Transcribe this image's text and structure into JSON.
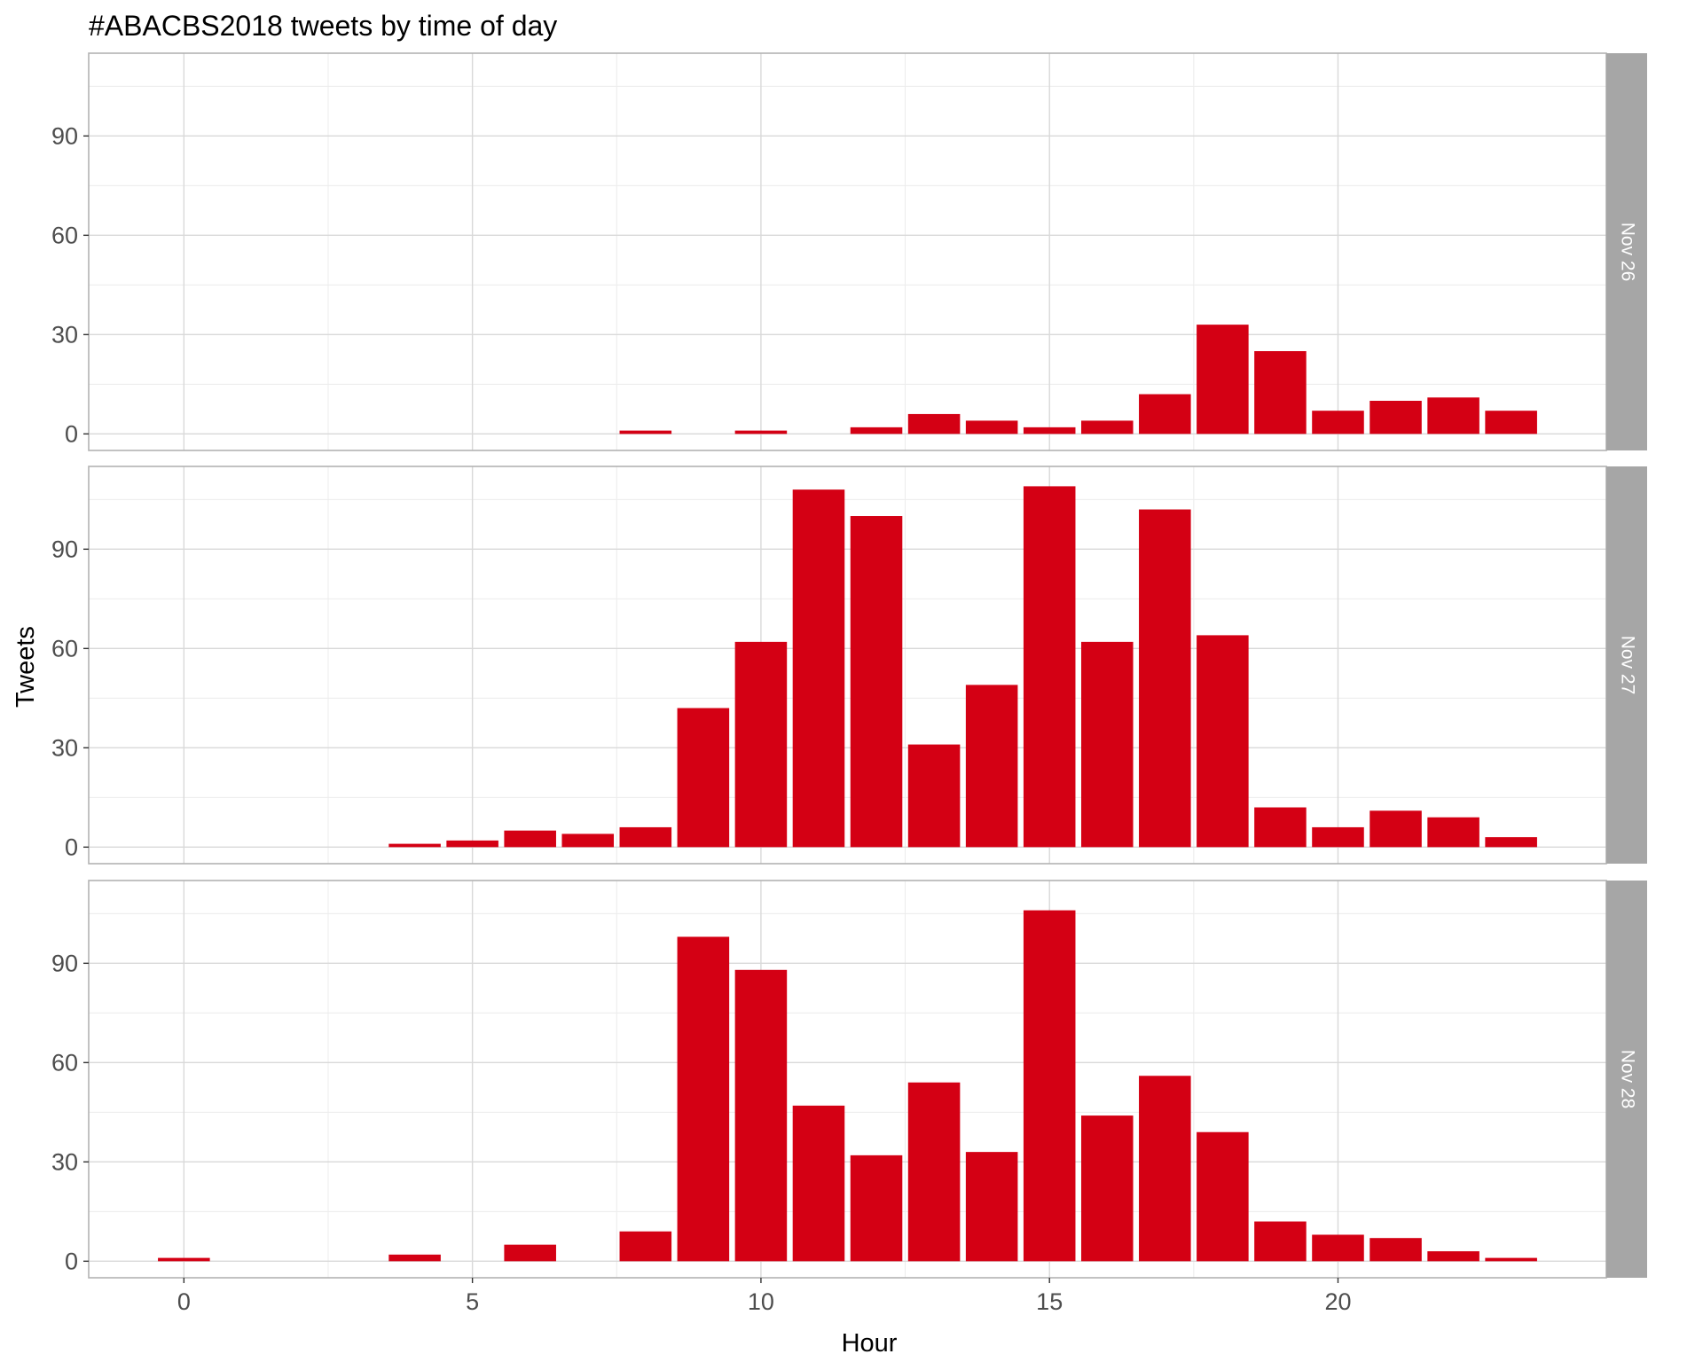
{
  "chart_data": {
    "type": "bar",
    "title": "#ABACBS2018 tweets by time of day",
    "xlabel": "Hour",
    "ylabel": "Tweets",
    "xlim": [
      -1.65,
      24.65
    ],
    "ylim": [
      -5,
      115
    ],
    "x_ticks": [
      0,
      5,
      10,
      15,
      20
    ],
    "y_ticks": [
      0,
      30,
      60,
      90
    ],
    "grid": true,
    "colors": {
      "bar": "#d40014",
      "strip": "#a6a6a6",
      "panel_border": "#b3b3b3",
      "grid_major": "#d9d9d9",
      "grid_minor": "#ececec"
    },
    "facets": [
      {
        "label": "Nov 26",
        "hours": [
          8,
          10,
          12,
          13,
          14,
          15,
          16,
          17,
          18,
          19,
          20,
          21,
          22,
          23
        ],
        "values": [
          1,
          1,
          2,
          6,
          4,
          2,
          4,
          12,
          33,
          25,
          7,
          10,
          11,
          7
        ]
      },
      {
        "label": "Nov 27",
        "hours": [
          4,
          5,
          6,
          7,
          8,
          9,
          10,
          11,
          12,
          13,
          14,
          15,
          16,
          17,
          18,
          19,
          20,
          21,
          22,
          23
        ],
        "values": [
          1,
          2,
          5,
          4,
          6,
          42,
          62,
          108,
          100,
          31,
          49,
          109,
          62,
          102,
          64,
          12,
          6,
          11,
          9,
          3
        ]
      },
      {
        "label": "Nov 28",
        "hours": [
          0,
          4,
          6,
          8,
          9,
          10,
          11,
          12,
          13,
          14,
          15,
          16,
          17,
          18,
          19,
          20,
          21,
          22,
          23
        ],
        "values": [
          1,
          2,
          5,
          9,
          98,
          88,
          47,
          32,
          54,
          33,
          106,
          44,
          56,
          39,
          12,
          8,
          7,
          3,
          1
        ]
      }
    ]
  }
}
